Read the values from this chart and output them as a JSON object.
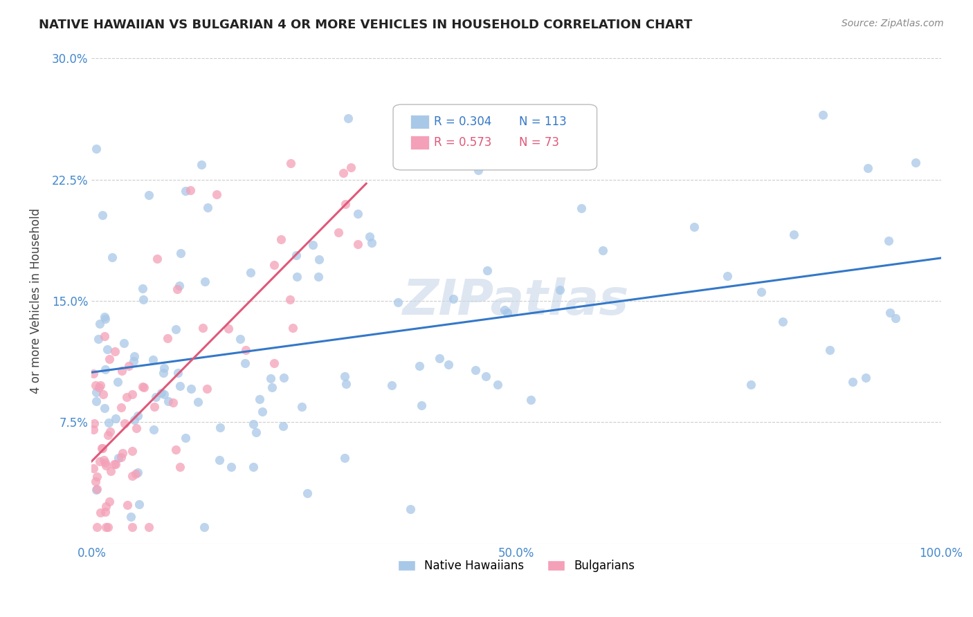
{
  "title": "NATIVE HAWAIIAN VS BULGARIAN 4 OR MORE VEHICLES IN HOUSEHOLD CORRELATION CHART",
  "source": "Source: ZipAtlas.com",
  "ylabel": "4 or more Vehicles in Household",
  "xlim": [
    0,
    1.0
  ],
  "ylim": [
    0,
    0.3
  ],
  "legend_r1": "R = 0.304",
  "legend_n1": "N = 113",
  "legend_r2": "R = 0.573",
  "legend_n2": "N = 73",
  "color_blue": "#a8c8e8",
  "color_pink": "#f4a0b8",
  "line_color_blue": "#3478c8",
  "line_color_pink": "#e05878",
  "background_color": "#ffffff",
  "watermark": "ZIPatlas",
  "grid_color": "#cccccc",
  "tick_color": "#4488cc",
  "title_color": "#222222",
  "ylabel_color": "#444444",
  "source_color": "#888888"
}
